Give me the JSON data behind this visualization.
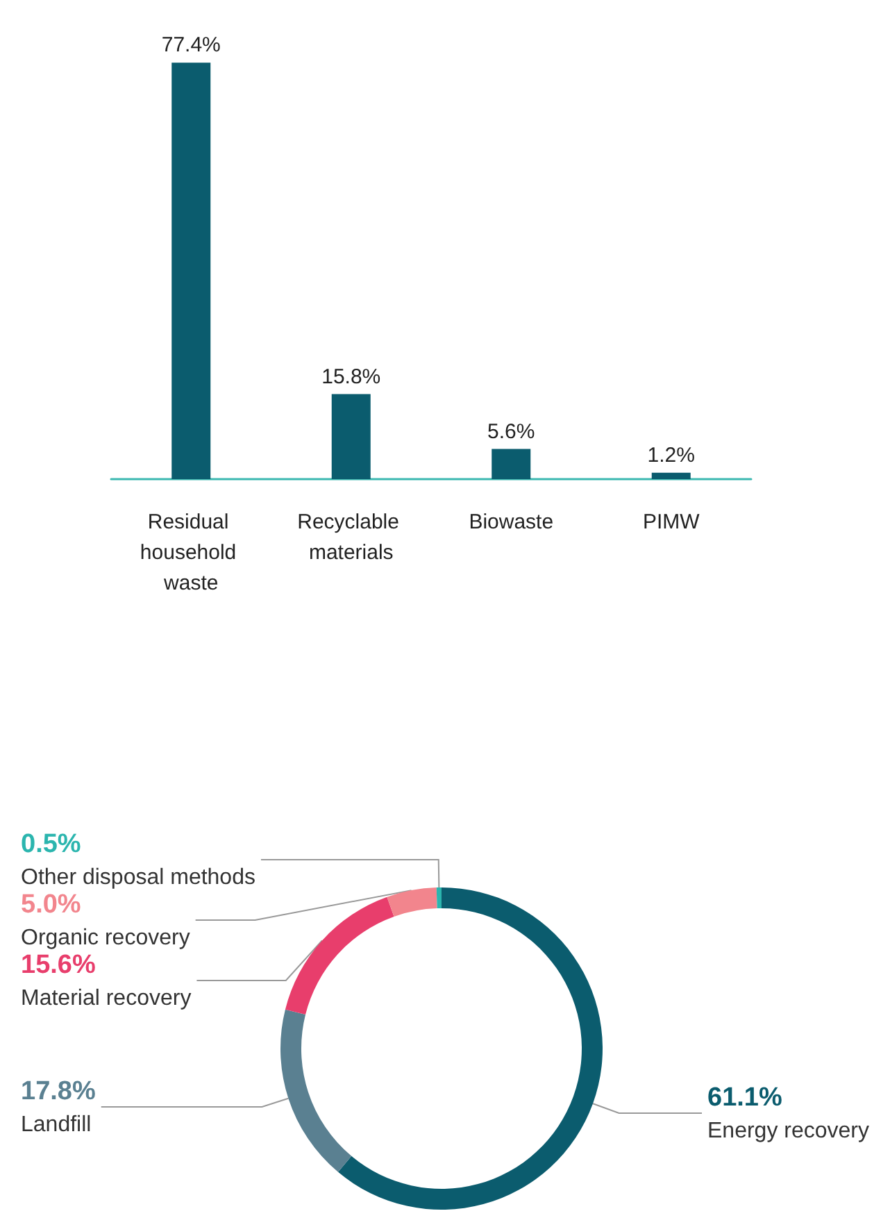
{
  "chart_data": [
    {
      "type": "bar",
      "categories": [
        "Residual household waste",
        "Recyclable materials",
        "Biowaste",
        "PIMW"
      ],
      "values": [
        77.4,
        15.8,
        5.6,
        1.2
      ],
      "value_labels": [
        "77.4%",
        "15.8%",
        "5.6%",
        "1.2%"
      ],
      "color": "#0b5c6e"
    },
    {
      "type": "donut",
      "categories": [
        "Energy recovery",
        "Landfill",
        "Material recovery",
        "Organic recovery",
        "Other disposal methods"
      ],
      "values": [
        61.1,
        17.8,
        15.6,
        5.0,
        0.5
      ],
      "value_labels": [
        "61.1%",
        "17.8%",
        "15.6%",
        "5.0%",
        "0.5%"
      ],
      "colors": [
        "#0b5c6e",
        "#5a8091",
        "#e83e6c",
        "#f2858d",
        "#2bb5ae"
      ]
    }
  ]
}
